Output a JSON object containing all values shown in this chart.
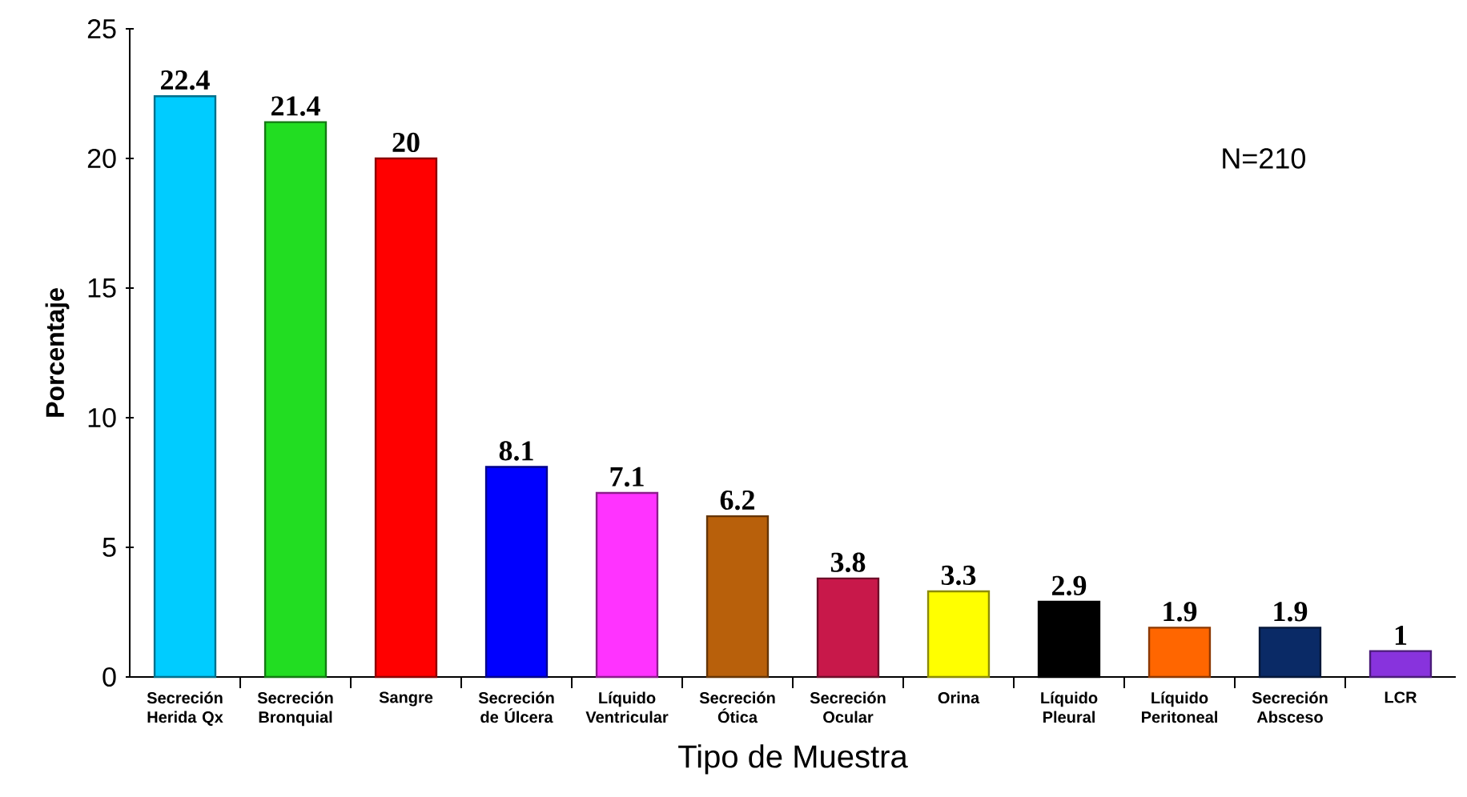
{
  "chart_data": {
    "type": "bar",
    "xlabel": "Tipo de Muestra",
    "ylabel": "Porcentaje",
    "categories": [
      "Secreción Herida Qx",
      "Secreción Bronquial",
      "Sangre",
      "Secreción de Úlcera",
      "Líquido Ventricular",
      "Secreción Ótica",
      "Secreción Ocular",
      "Orina",
      "Líquido Pleural",
      "Líquido Peritoneal",
      "Secreción Absceso",
      "LCR"
    ],
    "values": [
      22.4,
      21.4,
      20,
      8.1,
      7.1,
      6.2,
      3.8,
      3.3,
      2.9,
      1.9,
      1.9,
      1
    ],
    "colors": [
      "#00ccff",
      "#22dd22",
      "#ff0000",
      "#0000ff",
      "#ff33ff",
      "#b8600b",
      "#c8184a",
      "#ffff00",
      "#000000",
      "#ff6600",
      "#0a2a66",
      "#8833dd"
    ],
    "ylim": [
      0,
      25
    ],
    "yticks": [
      0,
      5,
      10,
      15,
      20,
      25
    ],
    "data_labels": true,
    "annotations": [
      "N=210"
    ]
  }
}
